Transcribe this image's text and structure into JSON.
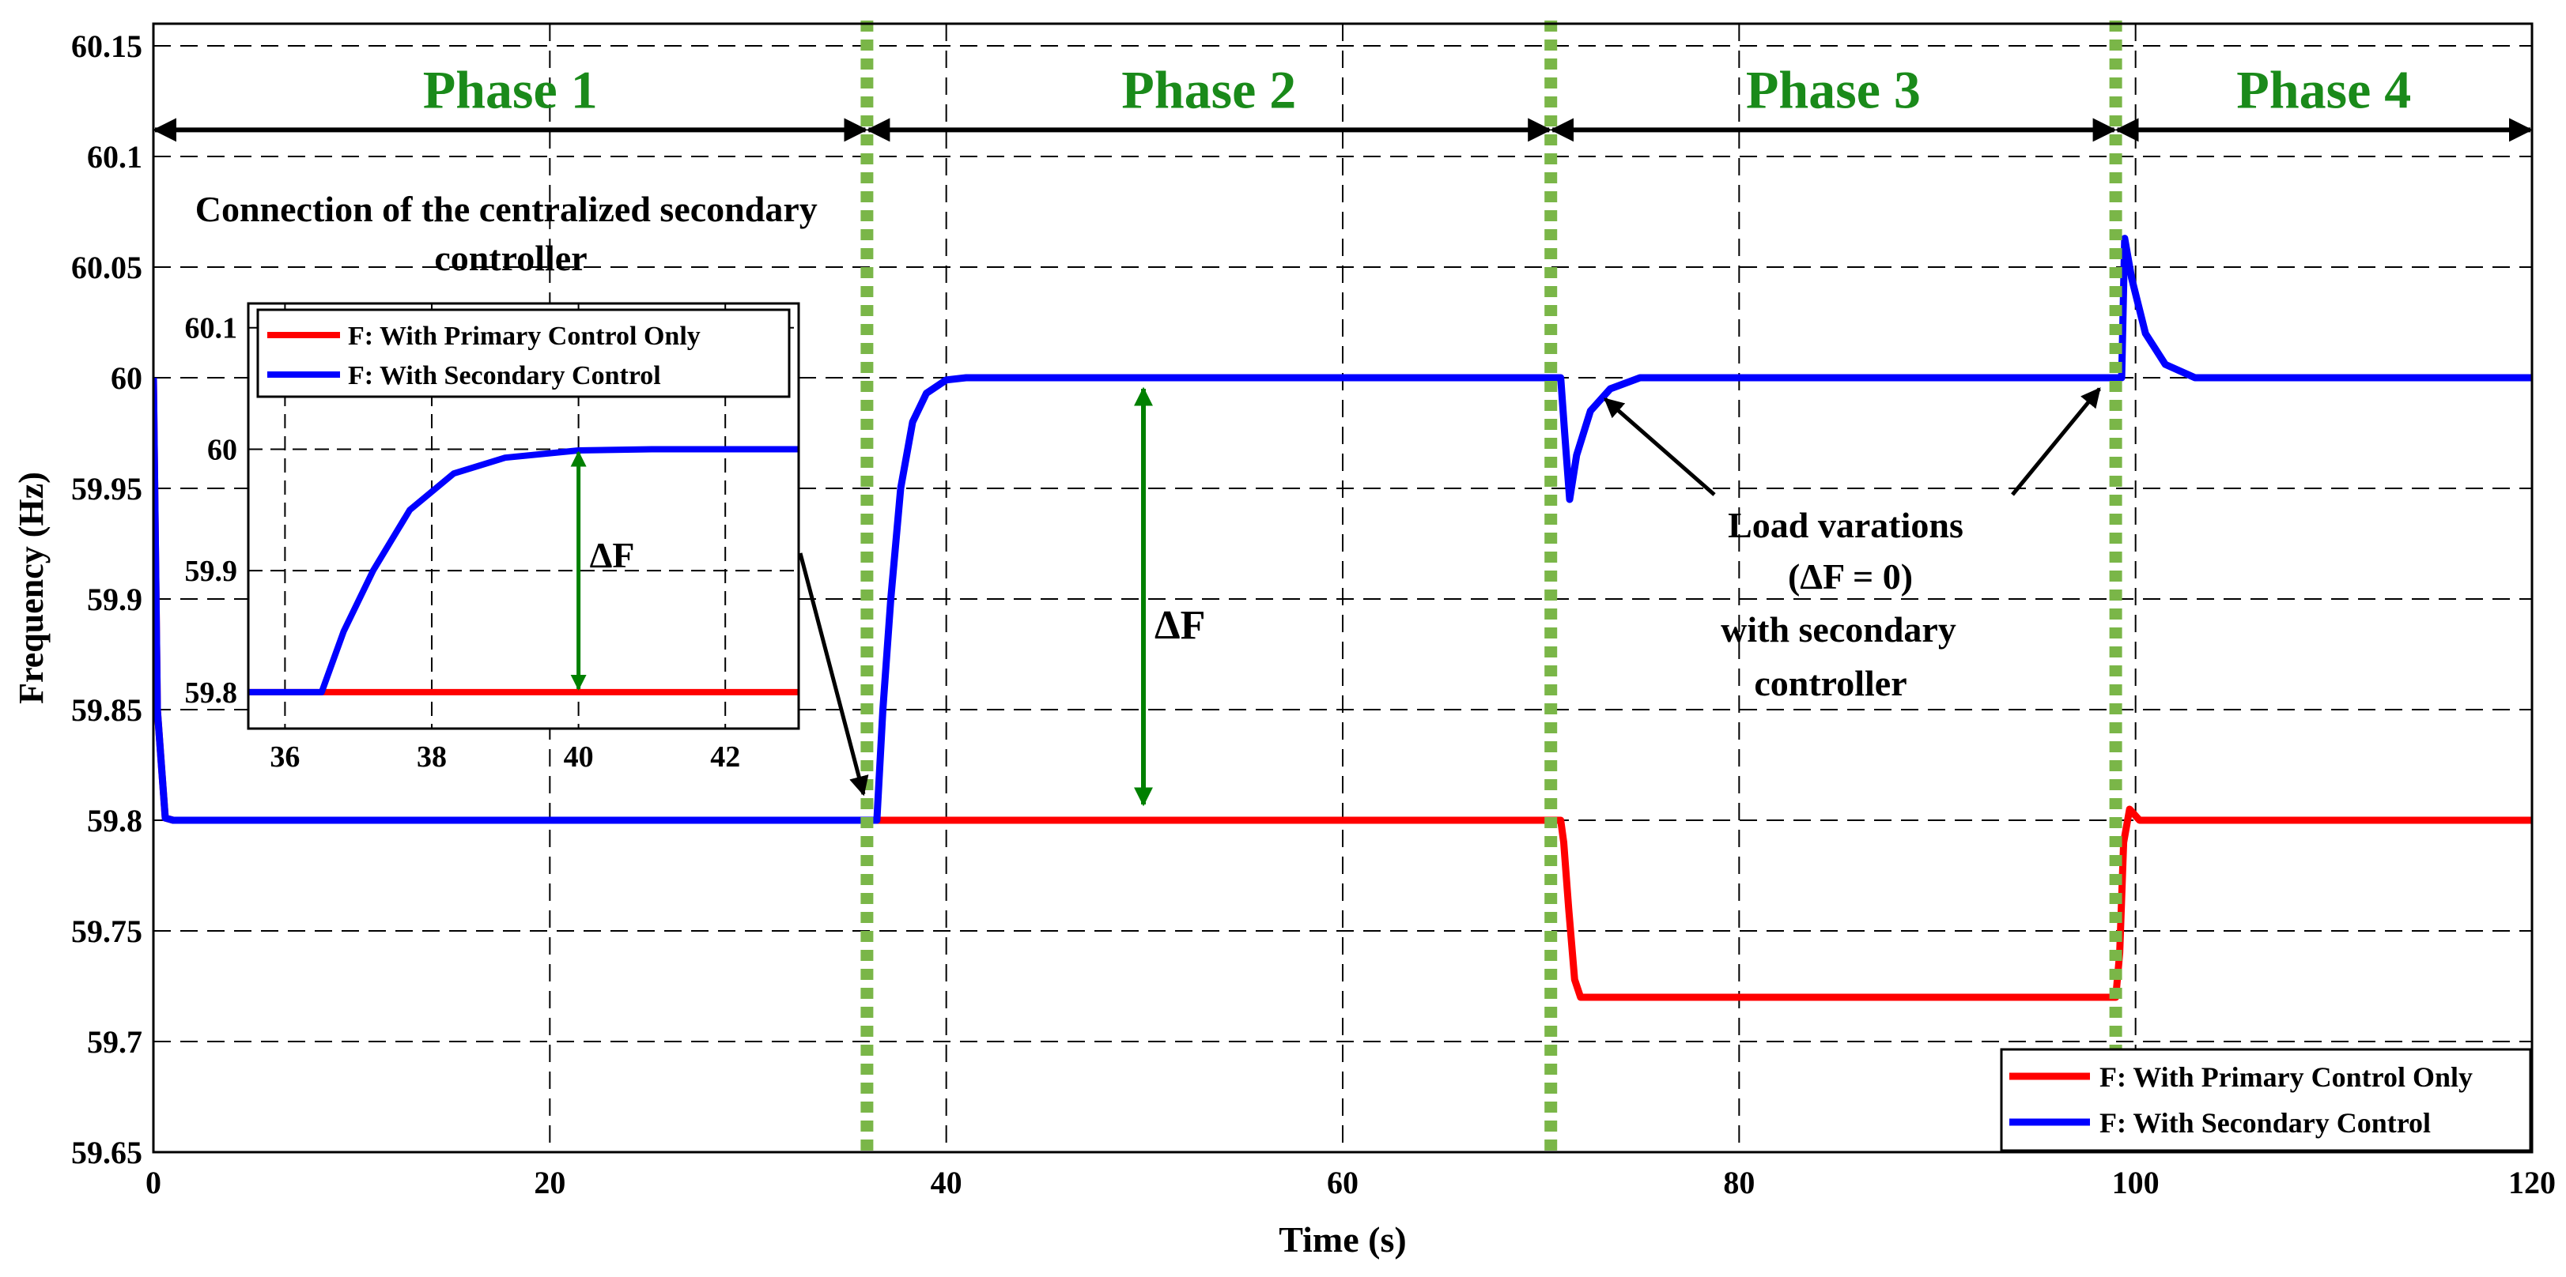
{
  "chart_data": {
    "type": "line",
    "xlabel": "Time (s)",
    "ylabel": "Frequency (Hz)",
    "xlim": [
      0,
      120
    ],
    "ylim": [
      59.65,
      60.16
    ],
    "xticks": [
      0,
      20,
      40,
      60,
      80,
      100,
      120
    ],
    "yticks": [
      59.65,
      59.7,
      59.75,
      59.8,
      59.85,
      59.9,
      59.95,
      60,
      60.05,
      60.1,
      60.15
    ],
    "grid": true,
    "legend": "bottom-right",
    "series": [
      {
        "name": "F: With Primary Control Only",
        "color": "#ff0000",
        "points": [
          [
            0,
            60
          ],
          [
            0.2,
            59.85
          ],
          [
            0.6,
            59.801
          ],
          [
            1,
            59.8
          ],
          [
            36.5,
            59.8
          ],
          [
            71,
            59.8
          ],
          [
            71.15,
            59.79
          ],
          [
            71.4,
            59.76
          ],
          [
            71.7,
            59.728
          ],
          [
            72,
            59.72
          ],
          [
            73,
            59.72
          ],
          [
            99,
            59.72
          ],
          [
            99.2,
            59.74
          ],
          [
            99.4,
            59.79
          ],
          [
            99.7,
            59.805
          ],
          [
            100.2,
            59.8
          ],
          [
            120,
            59.8
          ]
        ]
      },
      {
        "name": "F: With Secondary Control",
        "color": "#0000ff",
        "points": [
          [
            0,
            60
          ],
          [
            0.2,
            59.85
          ],
          [
            0.6,
            59.801
          ],
          [
            1,
            59.8
          ],
          [
            36.5,
            59.8
          ],
          [
            36.8,
            59.85
          ],
          [
            37.2,
            59.9
          ],
          [
            37.7,
            59.95
          ],
          [
            38.3,
            59.98
          ],
          [
            39,
            59.993
          ],
          [
            40,
            59.999
          ],
          [
            41,
            60
          ],
          [
            71,
            60
          ],
          [
            71.2,
            59.975
          ],
          [
            71.45,
            59.945
          ],
          [
            71.8,
            59.965
          ],
          [
            72.5,
            59.985
          ],
          [
            73.5,
            59.995
          ],
          [
            75,
            60
          ],
          [
            99.3,
            60
          ],
          [
            99.45,
            60.063
          ],
          [
            99.8,
            60.045
          ],
          [
            100.5,
            60.02
          ],
          [
            101.5,
            60.006
          ],
          [
            103,
            60
          ],
          [
            120,
            60
          ]
        ]
      }
    ],
    "phase_boundaries": [
      36,
      70.5,
      99
    ],
    "phases": [
      "Phase 1",
      "Phase 2",
      "Phase 3",
      "Phase 4"
    ],
    "annotations": {
      "connection": "Connection of the centralized secondary controller",
      "delta_f": "ΔF",
      "load_var_line1": "Load varations",
      "load_var_line2": "(ΔF = 0)",
      "load_var_line3": "with secondary",
      "load_var_line4": "controller"
    },
    "inset": {
      "xlim": [
        35.5,
        43
      ],
      "ylim": [
        59.77,
        60.12
      ],
      "xticks": [
        36,
        38,
        40,
        42
      ],
      "yticks": [
        59.8,
        59.9,
        60,
        60.1
      ],
      "legend": "top"
    }
  }
}
